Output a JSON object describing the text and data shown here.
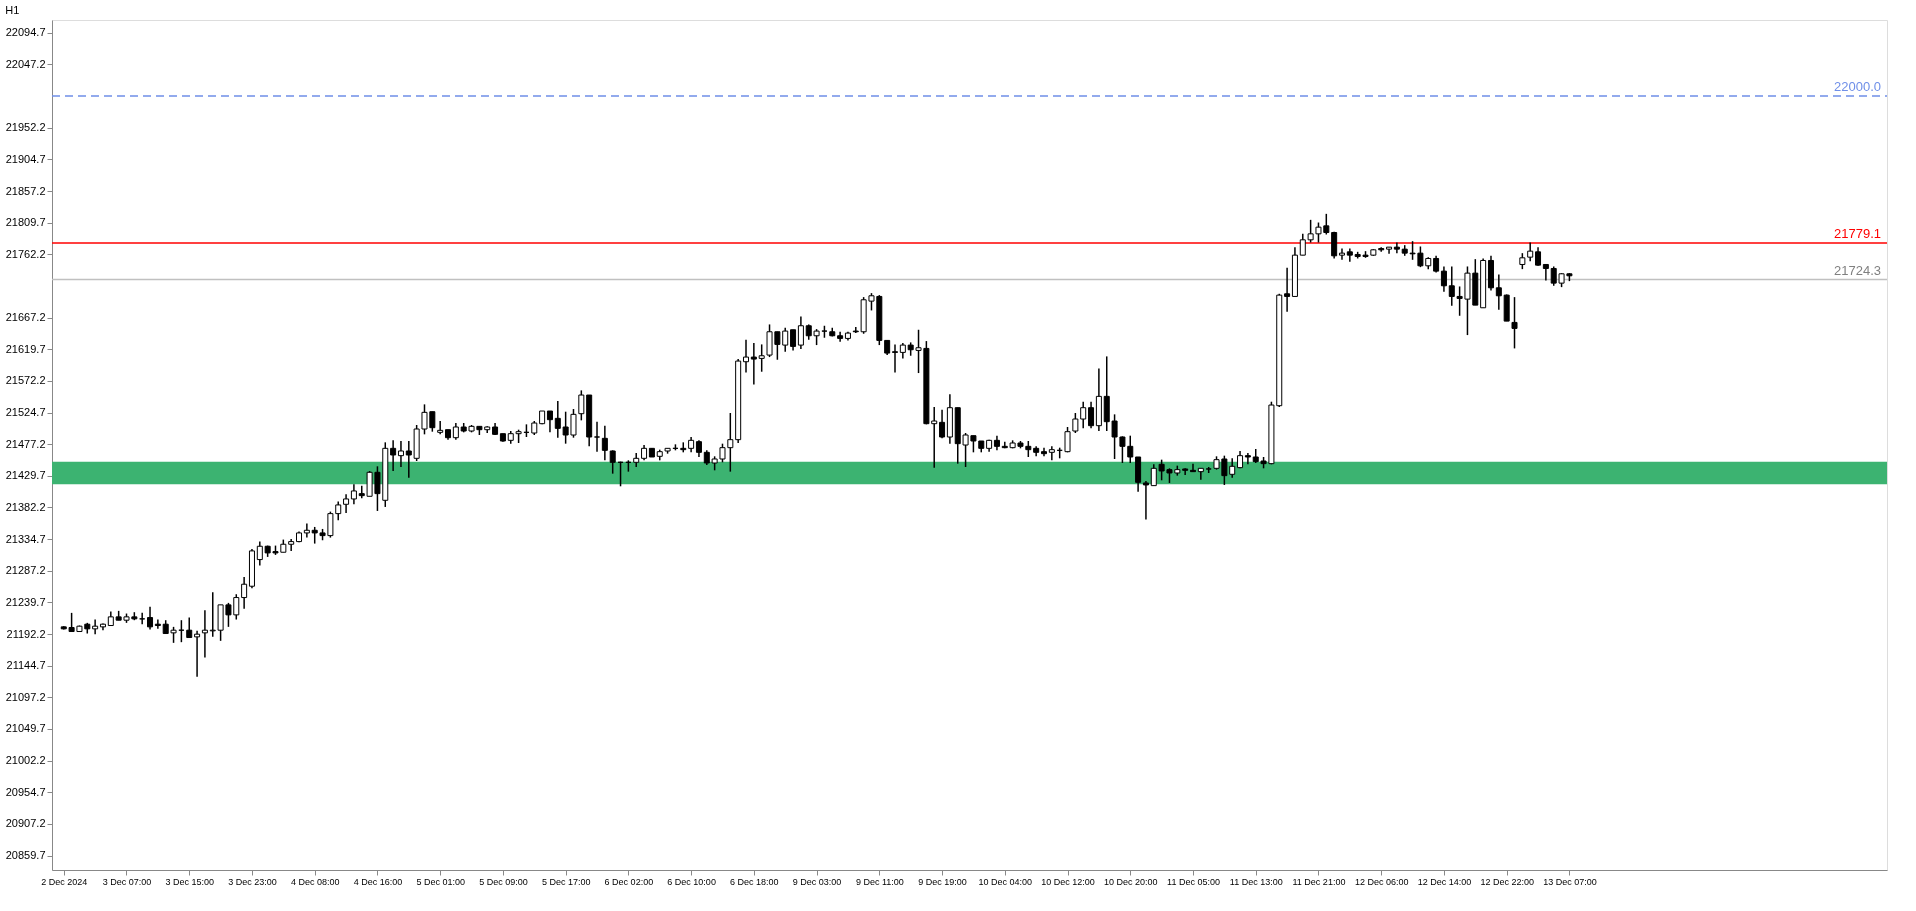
{
  "chart_data": {
    "type": "candlestick",
    "title": "H1",
    "categories": [
      "2 Dec 2024",
      null,
      null,
      null,
      null,
      null,
      null,
      null,
      "3 Dec 07:00",
      null,
      null,
      null,
      null,
      null,
      null,
      null,
      "3 Dec 15:00",
      null,
      null,
      null,
      null,
      null,
      null,
      null,
      "3 Dec 23:00",
      null,
      null,
      null,
      null,
      null,
      null,
      null,
      "4 Dec 08:00",
      null,
      null,
      null,
      null,
      null,
      null,
      null,
      "4 Dec 16:00",
      null,
      null,
      null,
      null,
      null,
      null,
      null,
      "5 Dec 01:00",
      null,
      null,
      null,
      null,
      null,
      null,
      null,
      "5 Dec 09:00",
      null,
      null,
      null,
      null,
      null,
      null,
      null,
      "5 Dec 17:00",
      null,
      null,
      null,
      null,
      null,
      null,
      null,
      "6 Dec 02:00",
      null,
      null,
      null,
      null,
      null,
      null,
      null,
      "6 Dec 10:00",
      null,
      null,
      null,
      null,
      null,
      null,
      null,
      "6 Dec 18:00",
      null,
      null,
      null,
      null,
      null,
      null,
      null,
      "9 Dec 03:00",
      null,
      null,
      null,
      null,
      null,
      null,
      null,
      "9 Dec 11:00",
      null,
      null,
      null,
      null,
      null,
      null,
      null,
      "9 Dec 19:00",
      null,
      null,
      null,
      null,
      null,
      null,
      null,
      "10 Dec 04:00",
      null,
      null,
      null,
      null,
      null,
      null,
      null,
      "10 Dec 12:00",
      null,
      null,
      null,
      null,
      null,
      null,
      null,
      "10 Dec 20:00",
      null,
      null,
      null,
      null,
      null,
      null,
      null,
      "11 Dec 05:00",
      null,
      null,
      null,
      null,
      null,
      null,
      null,
      "11 Dec 13:00",
      null,
      null,
      null,
      null,
      null,
      null,
      null,
      "11 Dec 21:00",
      null,
      null,
      null,
      null,
      null,
      null,
      null,
      "12 Dec 06:00",
      null,
      null,
      null,
      null,
      null,
      null,
      null,
      "12 Dec 14:00",
      null,
      null,
      null,
      null,
      null,
      null,
      null,
      "12 Dec 22:00",
      null,
      null,
      null,
      null,
      null,
      null,
      null,
      "13 Dec 07:00"
    ],
    "ohlc": [
      [
        21203,
        21204,
        21199,
        21200
      ],
      [
        21202,
        21224,
        21196,
        21196
      ],
      [
        21196,
        21205,
        21196,
        21204
      ],
      [
        21207,
        21209,
        21193,
        21200
      ],
      [
        21200,
        21214,
        21192,
        21204
      ],
      [
        21203,
        21208,
        21198,
        21207
      ],
      [
        21205,
        21226,
        21205,
        21218
      ],
      [
        21218,
        21227,
        21213,
        21213
      ],
      [
        21213,
        21223,
        21209,
        21218
      ],
      [
        21218,
        21225,
        21213,
        21215
      ],
      [
        21215,
        21224,
        21207,
        21215
      ],
      [
        21217,
        21233,
        21199,
        21203
      ],
      [
        21207,
        21214,
        21200,
        21205
      ],
      [
        21207,
        21213,
        21193,
        21193
      ],
      [
        21194,
        21203,
        21179,
        21198
      ],
      [
        21198,
        21213,
        21180,
        21198
      ],
      [
        21198,
        21217,
        21187,
        21187
      ],
      [
        21188,
        21197,
        21128,
        21192
      ],
      [
        21194,
        21228,
        21157,
        21198
      ],
      [
        21197,
        21255,
        21188,
        21198
      ],
      [
        21198,
        21236,
        21182,
        21236
      ],
      [
        21236,
        21239,
        21203,
        21221
      ],
      [
        21221,
        21252,
        21214,
        21247
      ],
      [
        21247,
        21278,
        21230,
        21267
      ],
      [
        21264,
        21320,
        21261,
        21317
      ],
      [
        21304,
        21331,
        21295,
        21324
      ],
      [
        21324,
        21325,
        21308,
        21314
      ],
      [
        21316,
        21325,
        21311,
        21314
      ],
      [
        21315,
        21334,
        21315,
        21327
      ],
      [
        21327,
        21335,
        21317,
        21331
      ],
      [
        21331,
        21346,
        21330,
        21344
      ],
      [
        21344,
        21358,
        21337,
        21348
      ],
      [
        21348,
        21353,
        21328,
        21344
      ],
      [
        21344,
        21350,
        21333,
        21340
      ],
      [
        21340,
        21376,
        21337,
        21373
      ],
      [
        21373,
        21391,
        21363,
        21386
      ],
      [
        21387,
        21402,
        21374,
        21395
      ],
      [
        21395,
        21417,
        21387,
        21407
      ],
      [
        21403,
        21415,
        21396,
        21400
      ],
      [
        21399,
        21437,
        21399,
        21435
      ],
      [
        21435,
        21444,
        21377,
        21403
      ],
      [
        21393,
        21480,
        21383,
        21471
      ],
      [
        21471,
        21483,
        21437,
        21461
      ],
      [
        21460,
        21482,
        21443,
        21467
      ],
      [
        21467,
        21482,
        21427,
        21461
      ],
      [
        21456,
        21506,
        21452,
        21500
      ],
      [
        21500,
        21537,
        21492,
        21525
      ],
      [
        21526,
        21526,
        21496,
        21502
      ],
      [
        21495,
        21512,
        21492,
        21498
      ],
      [
        21499,
        21499,
        21484,
        21487
      ],
      [
        21487,
        21509,
        21484,
        21503
      ],
      [
        21503,
        21509,
        21495,
        21497
      ],
      [
        21497,
        21506,
        21495,
        21504
      ],
      [
        21504,
        21504,
        21491,
        21499
      ],
      [
        21499,
        21504,
        21494,
        21503
      ],
      [
        21503,
        21509,
        21491,
        21492
      ],
      [
        21493,
        21493,
        21481,
        21482
      ],
      [
        21483,
        21497,
        21478,
        21493
      ],
      [
        21493,
        21499,
        21479,
        21496
      ],
      [
        21495,
        21507,
        21488,
        21495
      ],
      [
        21494,
        21512,
        21491,
        21509
      ],
      [
        21508,
        21527,
        21507,
        21527
      ],
      [
        21527,
        21527,
        21495,
        21514
      ],
      [
        21516,
        21542,
        21487,
        21501
      ],
      [
        21503,
        21526,
        21478,
        21491
      ],
      [
        21491,
        21530,
        21487,
        21522
      ],
      [
        21523,
        21558,
        21513,
        21551
      ],
      [
        21551,
        21551,
        21474,
        21488
      ],
      [
        21488,
        21511,
        21466,
        21488
      ],
      [
        21486,
        21505,
        21453,
        21468
      ],
      [
        21467,
        21468,
        21433,
        21450
      ],
      [
        21450,
        21451,
        21414,
        21450
      ],
      [
        21450,
        21453,
        21436,
        21450
      ],
      [
        21450,
        21464,
        21443,
        21456
      ],
      [
        21456,
        21476,
        21453,
        21471
      ],
      [
        21471,
        21471,
        21458,
        21458
      ],
      [
        21459,
        21469,
        21453,
        21466
      ],
      [
        21467,
        21471,
        21463,
        21471
      ],
      [
        21471,
        21477,
        21468,
        21471
      ],
      [
        21471,
        21480,
        21465,
        21469
      ],
      [
        21471,
        21488,
        21465,
        21483
      ],
      [
        21481,
        21483,
        21458,
        21465
      ],
      [
        21465,
        21468,
        21446,
        21449
      ],
      [
        21449,
        21459,
        21438,
        21455
      ],
      [
        21455,
        21478,
        21450,
        21472
      ],
      [
        21472,
        21524,
        21436,
        21484
      ],
      [
        21484,
        21605,
        21479,
        21602
      ],
      [
        21601,
        21634,
        21585,
        21608
      ],
      [
        21608,
        21629,
        21567,
        21605
      ],
      [
        21606,
        21627,
        21586,
        21610
      ],
      [
        21611,
        21657,
        21608,
        21646
      ],
      [
        21646,
        21646,
        21604,
        21627
      ],
      [
        21626,
        21652,
        21616,
        21647
      ],
      [
        21649,
        21649,
        21618,
        21624
      ],
      [
        21626,
        21669,
        21620,
        21655
      ],
      [
        21655,
        21657,
        21634,
        21640
      ],
      [
        21640,
        21650,
        21626,
        21647
      ],
      [
        21647,
        21655,
        21637,
        21647
      ],
      [
        21646,
        21652,
        21639,
        21640
      ],
      [
        21640,
        21646,
        21631,
        21636
      ],
      [
        21636,
        21646,
        21633,
        21644
      ],
      [
        21647,
        21653,
        21644,
        21646
      ],
      [
        21646,
        21698,
        21643,
        21694
      ],
      [
        21692,
        21704,
        21678,
        21700
      ],
      [
        21699,
        21701,
        21626,
        21633
      ],
      [
        21633,
        21633,
        21611,
        21614
      ],
      [
        21616,
        21627,
        21585,
        21615
      ],
      [
        21615,
        21629,
        21606,
        21626
      ],
      [
        21626,
        21630,
        21610,
        21619
      ],
      [
        21618,
        21649,
        21584,
        21622
      ],
      [
        21621,
        21632,
        21507,
        21508
      ],
      [
        21508,
        21533,
        21442,
        21512
      ],
      [
        21510,
        21529,
        21486,
        21488
      ],
      [
        21488,
        21552,
        21478,
        21532
      ],
      [
        21532,
        21532,
        21448,
        21478
      ],
      [
        21476,
        21494,
        21443,
        21491
      ],
      [
        21490,
        21490,
        21465,
        21482
      ],
      [
        21482,
        21482,
        21465,
        21471
      ],
      [
        21471,
        21484,
        21466,
        21483
      ],
      [
        21483,
        21490,
        21468,
        21474
      ],
      [
        21474,
        21481,
        21471,
        21472
      ],
      [
        21472,
        21483,
        21471,
        21479
      ],
      [
        21479,
        21482,
        21471,
        21474
      ],
      [
        21474,
        21482,
        21458,
        21469
      ],
      [
        21471,
        21474,
        21459,
        21465
      ],
      [
        21466,
        21472,
        21459,
        21463
      ],
      [
        21465,
        21474,
        21453,
        21469
      ],
      [
        21468,
        21472,
        21456,
        21468
      ],
      [
        21466,
        21503,
        21465,
        21496
      ],
      [
        21497,
        21524,
        21494,
        21515
      ],
      [
        21515,
        21541,
        21501,
        21532
      ],
      [
        21532,
        21541,
        21501,
        21505
      ],
      [
        21505,
        21591,
        21497,
        21549
      ],
      [
        21549,
        21609,
        21497,
        21511
      ],
      [
        21512,
        21522,
        21455,
        21488
      ],
      [
        21488,
        21489,
        21449,
        21474
      ],
      [
        21474,
        21490,
        21449,
        21458
      ],
      [
        21458,
        21458,
        21406,
        21420
      ],
      [
        21419,
        21422,
        21364,
        21416
      ],
      [
        21415,
        21447,
        21415,
        21441
      ],
      [
        21447,
        21454,
        21423,
        21437
      ],
      [
        21439,
        21441,
        21419,
        21434
      ],
      [
        21434,
        21445,
        21430,
        21439
      ],
      [
        21440,
        21441,
        21431,
        21438
      ],
      [
        21438,
        21448,
        21436,
        21436
      ],
      [
        21436,
        21441,
        21424,
        21441
      ],
      [
        21440,
        21443,
        21434,
        21440
      ],
      [
        21441,
        21459,
        21439,
        21454
      ],
      [
        21455,
        21460,
        21416,
        21430
      ],
      [
        21432,
        21456,
        21427,
        21444
      ],
      [
        21442,
        21467,
        21441,
        21460
      ],
      [
        21460,
        21464,
        21447,
        21458
      ],
      [
        21458,
        21470,
        21449,
        21451
      ],
      [
        21452,
        21458,
        21441,
        21448
      ],
      [
        21448,
        21541,
        21447,
        21536
      ],
      [
        21535,
        21703,
        21533,
        21701
      ],
      [
        21703,
        21742,
        21676,
        21699
      ],
      [
        21699,
        21773,
        21699,
        21761
      ],
      [
        21761,
        21793,
        21761,
        21784
      ],
      [
        21784,
        21814,
        21780,
        21793
      ],
      [
        21793,
        21810,
        21780,
        21803
      ],
      [
        21805,
        21823,
        21792,
        21795
      ],
      [
        21795,
        21796,
        21756,
        21760
      ],
      [
        21761,
        21771,
        21754,
        21764
      ],
      [
        21766,
        21771,
        21751,
        21761
      ],
      [
        21762,
        21766,
        21756,
        21759
      ],
      [
        21761,
        21767,
        21757,
        21759
      ],
      [
        21761,
        21770,
        21760,
        21769
      ],
      [
        21771,
        21773,
        21766,
        21769
      ],
      [
        21770,
        21773,
        21763,
        21773
      ],
      [
        21773,
        21780,
        21764,
        21770
      ],
      [
        21770,
        21776,
        21760,
        21764
      ],
      [
        21764,
        21782,
        21754,
        21763
      ],
      [
        21764,
        21774,
        21743,
        21745
      ],
      [
        21745,
        21758,
        21740,
        21756
      ],
      [
        21756,
        21760,
        21735,
        21737
      ],
      [
        21737,
        21744,
        21706,
        21715
      ],
      [
        21715,
        21744,
        21685,
        21699
      ],
      [
        21699,
        21714,
        21670,
        21696
      ],
      [
        21695,
        21744,
        21641,
        21734
      ],
      [
        21734,
        21755,
        21686,
        21686
      ],
      [
        21682,
        21756,
        21682,
        21753
      ],
      [
        21753,
        21760,
        21708,
        21712
      ],
      [
        21712,
        21732,
        21679,
        21700
      ],
      [
        21701,
        21702,
        21662,
        21662
      ],
      [
        21660,
        21698,
        21621,
        21651
      ],
      [
        21747,
        21764,
        21740,
        21757
      ],
      [
        21758,
        21780,
        21752,
        21767
      ],
      [
        21766,
        21773,
        21745,
        21746
      ],
      [
        21747,
        21747,
        21723,
        21741
      ],
      [
        21741,
        21744,
        21715,
        21719
      ],
      [
        21719,
        21734,
        21713,
        21733
      ],
      [
        21733,
        21734,
        21722,
        21730
      ]
    ],
    "ylim": [
      20838,
      22114
    ],
    "yticks": [
      22094.7,
      22047.2,
      21952.2,
      21904.7,
      21857.2,
      21809.7,
      21762.2,
      21667.2,
      21619.7,
      21572.2,
      21524.7,
      21477.2,
      21429.7,
      21382.2,
      21334.7,
      21287.2,
      21239.7,
      21192.2,
      21144.7,
      21097.2,
      21049.7,
      21002.2,
      20954.7,
      20907.2,
      20859.7
    ],
    "ref_lines": [
      {
        "axis": "y",
        "value": 22000.0,
        "label": "22000.0",
        "color": "#6f8fe8",
        "line_style": "dashed"
      },
      {
        "axis": "y",
        "value": 21779.1,
        "label": "21779.1",
        "color": "#ff0000",
        "line_style": "solid"
      },
      {
        "axis": "y",
        "value": 21724.3,
        "label": "21724.3",
        "color": "#c0c0c0",
        "line_style": "solid"
      }
    ],
    "bands": [
      {
        "axis": "y",
        "from": 21417,
        "to": 21451,
        "color": "#3cb371"
      }
    ]
  }
}
